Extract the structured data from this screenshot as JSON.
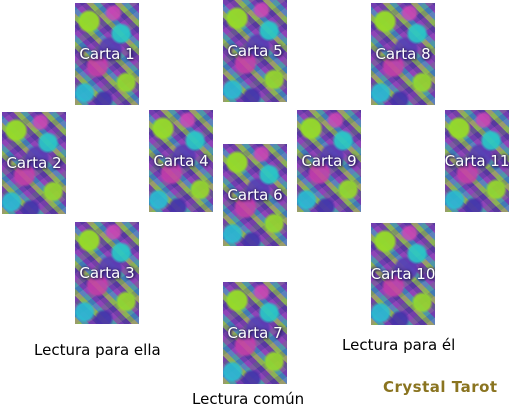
{
  "cards": [
    {
      "label": "Carta 1"
    },
    {
      "label": "Carta 2"
    },
    {
      "label": "Carta 3"
    },
    {
      "label": "Carta 4"
    },
    {
      "label": "Carta 5"
    },
    {
      "label": "Carta 6"
    },
    {
      "label": "Carta 7"
    },
    {
      "label": "Carta 8"
    },
    {
      "label": "Carta 9"
    },
    {
      "label": "Carta 10"
    },
    {
      "label": "Carta 11"
    }
  ],
  "captions": {
    "ella": "Lectura para ella",
    "el": "Lectura para él",
    "comun": "Lectura común"
  },
  "brand": {
    "name": "Crystal Tarot",
    "color": "#8a7420"
  }
}
